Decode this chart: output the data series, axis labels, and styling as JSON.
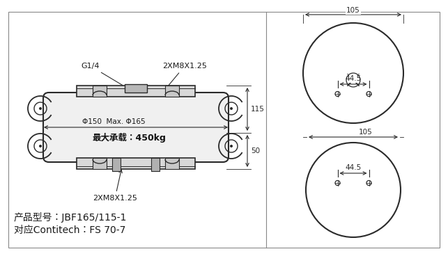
{
  "bg_color": "#ffffff",
  "line_color": "#2a2a2a",
  "dim_color": "#2a2a2a",
  "text_color": "#1a1a1a",
  "label1": "产品型号：JBF165/115-1",
  "label2": "对应Contitech：FS 70-7",
  "dim_105_top": "105",
  "dim_44_5_top": "44.5",
  "dim_105_mid": "105",
  "dim_44_5_bot": "44.5",
  "dim_115": "115",
  "dim_50": "50",
  "text_g14": "G1/4",
  "text_2xm8_top": "2XM8X1.25",
  "text_2xm8_bot": "2XM8X1.25",
  "text_phi": "Φ150  Max. Φ165",
  "text_load": "最大承载：450kg",
  "font_size_label": 9,
  "font_size_dim": 7.5,
  "font_size_small": 7
}
